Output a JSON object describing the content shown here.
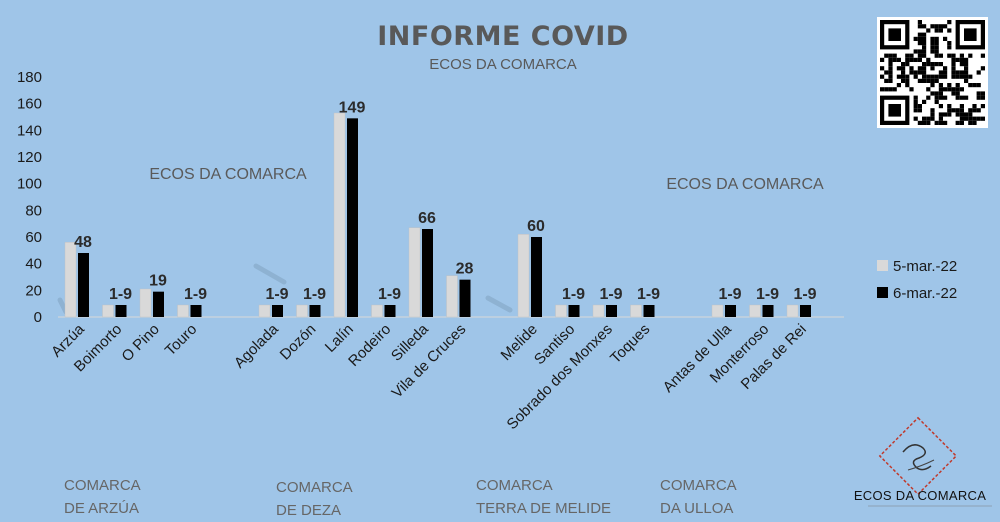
{
  "chart_data": {
    "type": "bar",
    "title": "INFORME COVID",
    "subtitle": "ECOS DA COMARCA",
    "watermarks": [
      "ECOS DA COMARCA",
      "ECOS DA COMARCA"
    ],
    "ylim": [
      0,
      180
    ],
    "yticks": [
      "0",
      "20",
      "40",
      "60",
      "80",
      "100",
      "120",
      "140",
      "160",
      "180"
    ],
    "categories": [
      "Arzúa",
      "Boimorto",
      "O Pino",
      "Touro",
      "Agolada",
      "Dozón",
      "Lalín",
      "Rodeiro",
      "Silleda",
      "Vila de Cruces",
      "Melide",
      "Santiso",
      "Sobrado dos Monxes",
      "Toques",
      "Antas de Ulla",
      "Monterroso",
      "Palas de Rei"
    ],
    "series": [
      {
        "name": "5-mar.-22",
        "color": "#d9d9d9",
        "values": [
          56,
          9,
          21,
          9,
          9,
          9,
          153,
          9,
          67,
          31,
          62,
          9,
          9,
          9,
          9,
          9,
          9
        ]
      },
      {
        "name": "6-mar.-22",
        "color": "#000000",
        "values": [
          48,
          9,
          19,
          9,
          9,
          9,
          149,
          9,
          66,
          28,
          60,
          9,
          9,
          9,
          9,
          9,
          9
        ]
      }
    ],
    "data_labels": [
      "48",
      "1-9",
      "19",
      "1-9",
      "1-9",
      "1-9",
      "149",
      "1-9",
      "66",
      "28",
      "60",
      "1-9",
      "1-9",
      "1-9",
      "1-9",
      "1-9",
      "1-9"
    ],
    "groups": [
      {
        "lines": [
          "COMARCA",
          "DE ARZÚA"
        ]
      },
      {
        "lines": [
          "COMARCA",
          "DE DEZA"
        ]
      },
      {
        "lines": [
          "COMARCA",
          "TERRA DE MELIDE"
        ]
      },
      {
        "lines": [
          "COMARCA",
          "DA ULLOA"
        ]
      }
    ],
    "legend_position": "right",
    "grid": false
  },
  "logo": {
    "name": "ECOS DA COMARCA"
  },
  "icons": {
    "qr": "qr-code-icon",
    "logo": "ecos-logo-icon"
  }
}
